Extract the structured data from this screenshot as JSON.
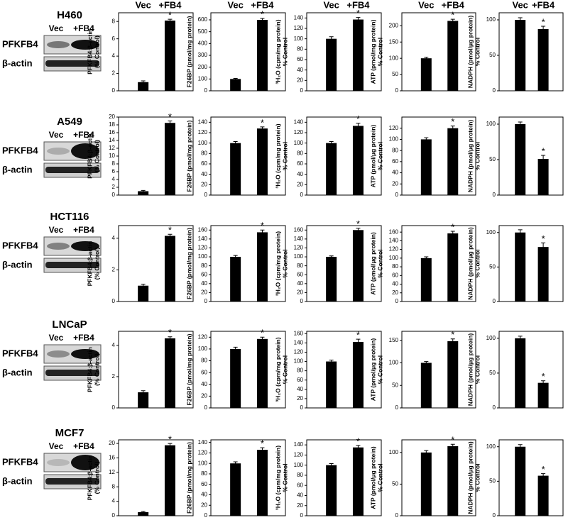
{
  "blots": [
    {
      "cell_line": "H460",
      "lanes": [
        "Vec",
        "+FB4"
      ],
      "rows": [
        "PFKFB4",
        "β-actin"
      ]
    },
    {
      "cell_line": "A549",
      "lanes": [
        "Vec",
        "+FB4"
      ],
      "rows": [
        "PFKFB4",
        "β-actin"
      ]
    },
    {
      "cell_line": "HCT116",
      "lanes": [
        "Vec",
        "+FB4"
      ],
      "rows": [
        "PFKFB4",
        "β-actin"
      ]
    },
    {
      "cell_line": "LNCaP",
      "lanes": [
        "Vec",
        "+FB4"
      ],
      "rows": [
        "PFKFB4",
        "β-actin"
      ]
    },
    {
      "cell_line": "MCF7",
      "lanes": [
        "Vec",
        "+FB4"
      ],
      "rows": [
        "PFKFB4",
        "β-actin"
      ]
    }
  ],
  "chart_data": [
    {
      "type": "bar",
      "categories": [
        "Vec",
        "+FB4"
      ],
      "ylabel": [
        "PFKFB4:β-actin",
        "(% Control)"
      ],
      "values": [
        1,
        8.1
      ],
      "errors": [
        0.15,
        0.15
      ],
      "significance": [
        null,
        "*"
      ],
      "color": "#000000",
      "ylim": [
        0,
        9
      ],
      "yticks": [
        0,
        2,
        4,
        6,
        8
      ]
    },
    {
      "type": "bar",
      "categories": [
        "Vec",
        "+FB4"
      ],
      "ylabel": [
        "F26BP (pmol/mg protein)"
      ],
      "values": [
        100,
        600
      ],
      "errors": [
        5,
        12
      ],
      "significance": [
        null,
        "*"
      ],
      "color": "#000000",
      "ylim": [
        0,
        660
      ],
      "yticks": [
        0,
        100,
        200,
        300,
        400,
        500,
        600
      ]
    },
    {
      "type": "bar",
      "categories": [
        "Vec",
        "+FB4"
      ],
      "ylabel": [
        "³H₂O (cpm/mg protein)",
        "% Control"
      ],
      "values": [
        100,
        137
      ],
      "errors": [
        4,
        4
      ],
      "significance": [
        null,
        "*"
      ],
      "color": "#000000",
      "ylim": [
        0,
        150
      ],
      "yticks": [
        0,
        20,
        40,
        60,
        80,
        100,
        120,
        140
      ]
    },
    {
      "type": "bar",
      "categories": [
        "Vec",
        "+FB4"
      ],
      "ylabel": [
        "ATP (pmol/mg protein)",
        "% Control"
      ],
      "values": [
        100,
        215
      ],
      "errors": [
        3,
        5
      ],
      "significance": [
        null,
        "*"
      ],
      "color": "#000000",
      "ylim": [
        0,
        240
      ],
      "yticks": [
        0,
        50,
        100,
        150,
        200
      ]
    },
    {
      "type": "bar",
      "categories": [
        "Vec",
        "+FB4"
      ],
      "ylabel": [
        "NADPH (pmol/μg protein)",
        "% Control"
      ],
      "values": [
        100,
        87
      ],
      "errors": [
        3,
        4
      ],
      "significance": [
        null,
        "*"
      ],
      "color": "#000000",
      "ylim": [
        0,
        110
      ],
      "yticks": [
        0,
        50,
        100
      ]
    },
    {
      "type": "bar",
      "ylabel": [
        "PFKFB4:β-actin",
        "(% Control)"
      ],
      "values": [
        1,
        18.5
      ],
      "errors": [
        0.2,
        0.5
      ],
      "significance": [
        null,
        "*"
      ],
      "color": "#000000",
      "ylim": [
        0,
        20
      ],
      "yticks": [
        0,
        2,
        4,
        6,
        8,
        10,
        12,
        14,
        16,
        18,
        20
      ]
    },
    {
      "type": "bar",
      "ylabel": [
        "F26BP (pmol/mg protein)"
      ],
      "values": [
        100,
        128
      ],
      "errors": [
        3,
        3
      ],
      "significance": [
        null,
        "*"
      ],
      "color": "#000000",
      "ylim": [
        0,
        150
      ],
      "yticks": [
        0,
        20,
        40,
        60,
        80,
        100,
        120,
        140
      ]
    },
    {
      "type": "bar",
      "ylabel": [
        "³H₂O (cpm/mg protein)",
        "% Control"
      ],
      "values": [
        100,
        133
      ],
      "errors": [
        3,
        5
      ],
      "significance": [
        null,
        "*"
      ],
      "color": "#000000",
      "ylim": [
        0,
        150
      ],
      "yticks": [
        0,
        20,
        40,
        60,
        80,
        100,
        120,
        140
      ]
    },
    {
      "type": "bar",
      "ylabel": [
        "ATP (pmol/μg protein)",
        "% Control"
      ],
      "values": [
        100,
        120
      ],
      "errors": [
        3,
        4
      ],
      "significance": [
        null,
        "*"
      ],
      "color": "#000000",
      "ylim": [
        0,
        140
      ],
      "yticks": [
        0,
        20,
        40,
        60,
        80,
        100,
        120
      ]
    },
    {
      "type": "bar",
      "ylabel": [
        "NADPH (pmol/μg protein)",
        "% Control"
      ],
      "values": [
        100,
        51
      ],
      "errors": [
        3,
        5
      ],
      "significance": [
        null,
        "*"
      ],
      "color": "#000000",
      "ylim": [
        0,
        110
      ],
      "yticks": [
        0,
        50,
        100
      ]
    },
    {
      "type": "bar",
      "ylabel": [
        "PFKFB4:β-actin",
        "(% Control)"
      ],
      "values": [
        1,
        4.15
      ],
      "errors": [
        0.1,
        0.1
      ],
      "significance": [
        null,
        "*"
      ],
      "color": "#000000",
      "ylim": [
        0,
        4.8
      ],
      "yticks": [
        0,
        2,
        4
      ]
    },
    {
      "type": "bar",
      "ylabel": [
        "F26BP (pmol/mg protein)"
      ],
      "values": [
        100,
        155
      ],
      "errors": [
        3,
        5
      ],
      "significance": [
        null,
        "*"
      ],
      "color": "#000000",
      "ylim": [
        0,
        170
      ],
      "yticks": [
        0,
        20,
        40,
        60,
        80,
        100,
        120,
        140,
        160
      ]
    },
    {
      "type": "bar",
      "ylabel": [
        "³H₂O (cpm/mg protein)",
        "% Control"
      ],
      "values": [
        100,
        160
      ],
      "errors": [
        2,
        4
      ],
      "significance": [
        null,
        "*"
      ],
      "color": "#000000",
      "ylim": [
        0,
        170
      ],
      "yticks": [
        0,
        20,
        40,
        60,
        80,
        100,
        120,
        140,
        160
      ]
    },
    {
      "type": "bar",
      "ylabel": [
        "ATP (pmol/μg protein)",
        "% Control"
      ],
      "values": [
        100,
        157
      ],
      "errors": [
        3,
        5
      ],
      "significance": [
        null,
        "*"
      ],
      "color": "#000000",
      "ylim": [
        0,
        175
      ],
      "yticks": [
        0,
        20,
        40,
        60,
        80,
        100,
        120,
        140,
        160
      ]
    },
    {
      "type": "bar",
      "ylabel": [
        "NADPH (pmol/μg protein)",
        "% Control"
      ],
      "values": [
        100,
        79
      ],
      "errors": [
        4,
        6
      ],
      "significance": [
        null,
        "*"
      ],
      "color": "#000000",
      "ylim": [
        0,
        110
      ],
      "yticks": [
        0,
        50,
        100
      ]
    },
    {
      "type": "bar",
      "ylabel": [
        "PFKFB4:β-actin",
        "(% Control)"
      ],
      "values": [
        1,
        4.45
      ],
      "errors": [
        0.1,
        0.1
      ],
      "significance": [
        null,
        "*"
      ],
      "color": "#000000",
      "ylim": [
        0,
        4.9
      ],
      "yticks": [
        0,
        2,
        4
      ]
    },
    {
      "type": "bar",
      "ylabel": [
        "F26BP (pmol/mg protein)"
      ],
      "values": [
        100,
        117
      ],
      "errors": [
        3,
        3
      ],
      "significance": [
        null,
        "*"
      ],
      "color": "#000000",
      "ylim": [
        0,
        130
      ],
      "yticks": [
        0,
        20,
        40,
        60,
        80,
        100,
        120
      ]
    },
    {
      "type": "bar",
      "ylabel": [
        "³H₂O (cpm/mg protein)",
        "% Control"
      ],
      "values": [
        100,
        142
      ],
      "errors": [
        3,
        6
      ],
      "significance": [
        null,
        "*"
      ],
      "color": "#000000",
      "ylim": [
        0,
        165
      ],
      "yticks": [
        0,
        20,
        40,
        60,
        80,
        100,
        120,
        140,
        160
      ]
    },
    {
      "type": "bar",
      "ylabel": [
        "ATP (pmol/μg protein)",
        "% Control"
      ],
      "values": [
        100,
        148
      ],
      "errors": [
        3,
        5
      ],
      "significance": [
        null,
        "*"
      ],
      "color": "#000000",
      "ylim": [
        0,
        170
      ],
      "yticks": [
        0,
        50,
        100,
        150
      ]
    },
    {
      "type": "bar",
      "ylabel": [
        "NADPH (pmol/μg protein)",
        "% Control"
      ],
      "values": [
        100,
        36
      ],
      "errors": [
        3,
        3
      ],
      "significance": [
        null,
        "*"
      ],
      "color": "#000000",
      "ylim": [
        0,
        110
      ],
      "yticks": [
        0,
        50,
        100
      ]
    },
    {
      "type": "bar",
      "ylabel": [
        "PFKFB4:β-actin",
        "(% Control)"
      ],
      "values": [
        1,
        19.5
      ],
      "errors": [
        0.2,
        0.5
      ],
      "significance": [
        null,
        "*"
      ],
      "color": "#000000",
      "ylim": [
        0,
        21
      ],
      "yticks": [
        0,
        4,
        8,
        12,
        16,
        20
      ]
    },
    {
      "type": "bar",
      "ylabel": [
        "F26BP (pmol/mg protein)"
      ],
      "values": [
        100,
        126
      ],
      "errors": [
        3,
        4
      ],
      "significance": [
        null,
        "*"
      ],
      "color": "#000000",
      "ylim": [
        0,
        145
      ],
      "yticks": [
        0,
        20,
        40,
        60,
        80,
        100,
        120,
        140
      ]
    },
    {
      "type": "bar",
      "ylabel": [
        "³H₂O (cpm/mg protein)",
        "% Control"
      ],
      "values": [
        100,
        135
      ],
      "errors": [
        3,
        4
      ],
      "significance": [
        null,
        "*"
      ],
      "color": "#000000",
      "ylim": [
        0,
        150
      ],
      "yticks": [
        0,
        20,
        40,
        60,
        80,
        100,
        120,
        140
      ]
    },
    {
      "type": "bar",
      "ylabel": [
        "ATP (pmol/μg protein)",
        "% Control"
      ],
      "values": [
        100,
        110
      ],
      "errors": [
        3,
        3
      ],
      "significance": [
        null,
        "*"
      ],
      "color": "#000000",
      "ylim": [
        0,
        120
      ],
      "yticks": [
        0,
        50,
        100
      ]
    },
    {
      "type": "bar",
      "ylabel": [
        "NADPH (pmol/μg protein)",
        "% Control"
      ],
      "values": [
        100,
        58
      ],
      "errors": [
        3,
        3
      ],
      "significance": [
        null,
        "*"
      ],
      "color": "#000000",
      "ylim": [
        0,
        110
      ],
      "yticks": [
        0,
        50,
        100
      ]
    }
  ]
}
